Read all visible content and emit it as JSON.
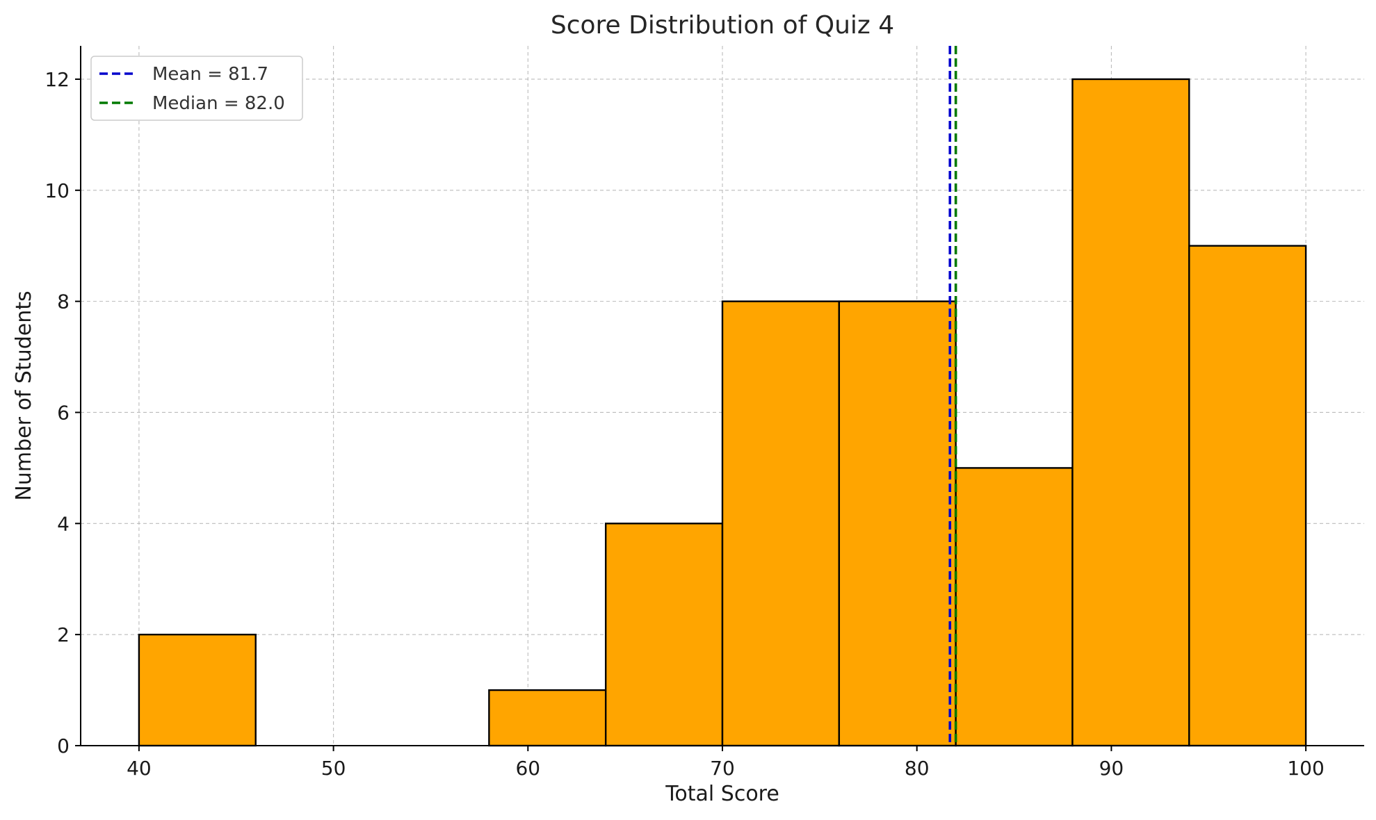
{
  "chart_data": {
    "type": "histogram",
    "title": "Score Distribution of Quiz 4",
    "xlabel": "Total Score",
    "ylabel": "Number of Students",
    "xlim": [
      37,
      103
    ],
    "ylim": [
      0,
      12.6
    ],
    "xticks": [
      40,
      50,
      60,
      70,
      80,
      90,
      100
    ],
    "yticks": [
      0,
      2,
      4,
      6,
      8,
      10,
      12
    ],
    "grid": true,
    "bar_color": "#FFA500",
    "bins": [
      {
        "start": 40,
        "end": 46,
        "count": 2
      },
      {
        "start": 46,
        "end": 52,
        "count": 0
      },
      {
        "start": 52,
        "end": 58,
        "count": 0
      },
      {
        "start": 58,
        "end": 64,
        "count": 1
      },
      {
        "start": 64,
        "end": 70,
        "count": 4
      },
      {
        "start": 70,
        "end": 76,
        "count": 8
      },
      {
        "start": 76,
        "end": 82,
        "count": 8
      },
      {
        "start": 82,
        "end": 88,
        "count": 5
      },
      {
        "start": 88,
        "end": 94,
        "count": 12
      },
      {
        "start": 94,
        "end": 100,
        "count": 9
      }
    ],
    "reference_lines": [
      {
        "name": "mean",
        "label": "Mean = 81.7",
        "x": 81.7,
        "color": "#0000cc"
      },
      {
        "name": "median",
        "label": "Median = 82.0",
        "x": 82.0,
        "color": "#007a00"
      }
    ],
    "legend_position": "top-left"
  }
}
